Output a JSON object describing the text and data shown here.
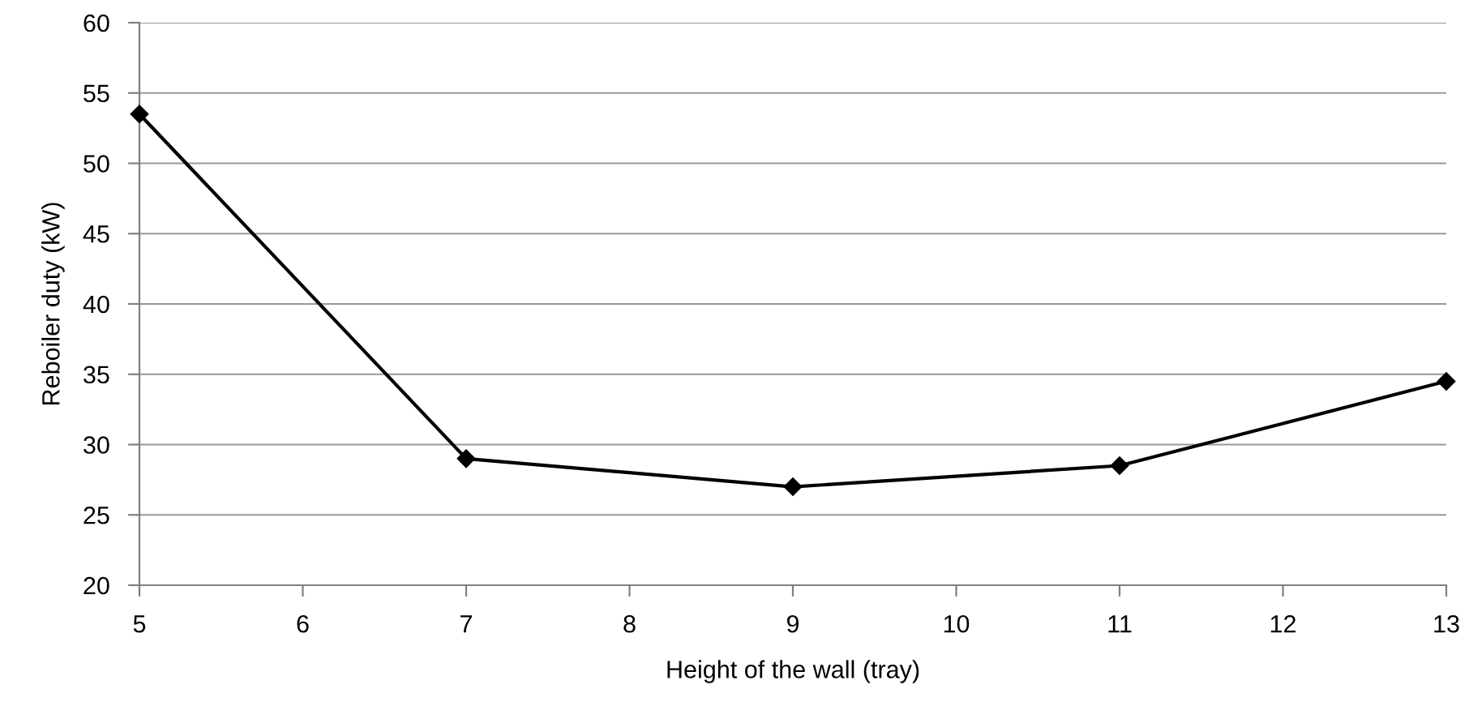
{
  "chart_data": {
    "type": "line",
    "xlabel": "Height of the wall (tray)",
    "ylabel": "Reboiler duty (kW)",
    "x": [
      5,
      7,
      9,
      11,
      13
    ],
    "series": [
      {
        "color": "#000000",
        "values": [
          53.5,
          29,
          27,
          28.5,
          34.5
        ]
      }
    ],
    "xlim": [
      5,
      13
    ],
    "xticks": [
      5,
      6,
      7,
      8,
      9,
      10,
      11,
      12,
      13
    ],
    "ylim": [
      20,
      60
    ],
    "yticks": [
      20,
      25,
      30,
      35,
      40,
      45,
      50,
      55,
      60
    ],
    "grid": "y",
    "marker": "diamond",
    "line_style": "solid"
  }
}
